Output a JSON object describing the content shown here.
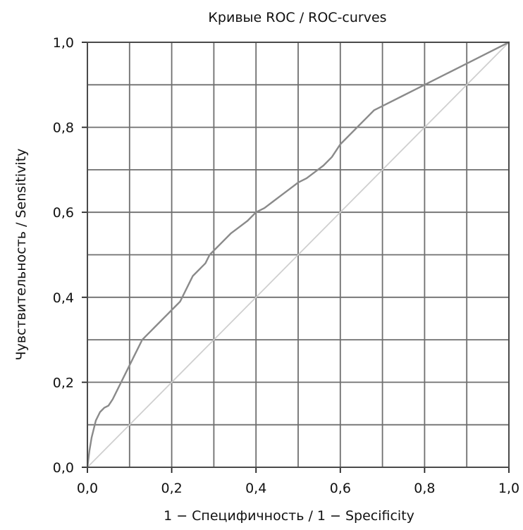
{
  "chart_data": {
    "type": "line",
    "title": "Кривые ROC / ROC-curves",
    "xlabel": "1 − Специфичность / 1 − Specificity",
    "ylabel": "Чувствительность / Sensitivity",
    "xlim": [
      0,
      1
    ],
    "ylim": [
      0,
      1
    ],
    "grid": true,
    "x_ticks": [
      "0,0",
      "0,2",
      "0,4",
      "0,6",
      "0,8",
      "1,0"
    ],
    "y_ticks": [
      "0,0",
      "0,2",
      "0,4",
      "0,6",
      "0,8",
      "1,0"
    ],
    "series": [
      {
        "x": [
          0.0,
          0.005,
          0.01,
          0.015,
          0.02,
          0.025,
          0.03,
          0.035,
          0.04,
          0.05,
          0.06,
          0.07,
          0.08,
          0.09,
          0.1,
          0.11,
          0.12,
          0.13,
          0.14,
          0.15,
          0.16,
          0.17,
          0.18,
          0.19,
          0.2,
          0.21,
          0.22,
          0.23,
          0.24,
          0.25,
          0.26,
          0.27,
          0.28,
          0.29,
          0.3,
          0.32,
          0.34,
          0.36,
          0.38,
          0.4,
          0.42,
          0.44,
          0.46,
          0.48,
          0.5,
          0.52,
          0.54,
          0.56,
          0.58,
          0.6,
          0.62,
          0.64,
          0.66,
          0.68,
          0.7,
          0.75,
          0.8,
          0.85,
          0.9,
          0.95,
          1.0
        ],
        "y": [
          0.0,
          0.04,
          0.07,
          0.09,
          0.11,
          0.12,
          0.13,
          0.135,
          0.14,
          0.145,
          0.16,
          0.18,
          0.2,
          0.22,
          0.24,
          0.26,
          0.28,
          0.3,
          0.31,
          0.32,
          0.33,
          0.34,
          0.35,
          0.36,
          0.37,
          0.38,
          0.39,
          0.41,
          0.43,
          0.45,
          0.46,
          0.47,
          0.48,
          0.5,
          0.51,
          0.53,
          0.55,
          0.565,
          0.58,
          0.6,
          0.61,
          0.625,
          0.64,
          0.655,
          0.67,
          0.68,
          0.695,
          0.71,
          0.73,
          0.76,
          0.78,
          0.8,
          0.82,
          0.84,
          0.85,
          0.875,
          0.9,
          0.925,
          0.95,
          0.975,
          1.0
        ],
        "color": "#8a8a8a"
      },
      {
        "x": [
          0,
          1
        ],
        "y": [
          0,
          1
        ],
        "color": "#cfcfcf"
      }
    ]
  }
}
